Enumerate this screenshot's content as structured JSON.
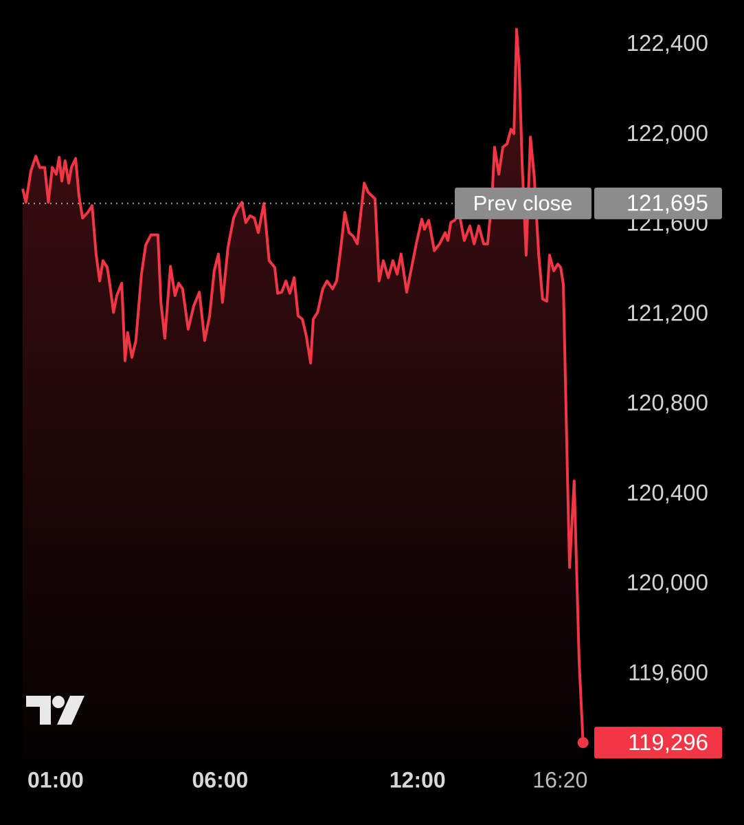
{
  "chart_data": {
    "type": "area",
    "color": "#f23645",
    "x": [
      0,
      0.1,
      0.25,
      0.4,
      0.52,
      0.67,
      0.78,
      0.9,
      1.02,
      1.11,
      1.19,
      1.29,
      1.4,
      1.48,
      1.61,
      1.71,
      1.82,
      1.98,
      2.11,
      2.23,
      2.34,
      2.44,
      2.57,
      2.65,
      2.76,
      2.86,
      3.01,
      3.11,
      3.19,
      3.32,
      3.44,
      3.61,
      3.74,
      3.9,
      4.11,
      4.2,
      4.32,
      4.49,
      4.63,
      4.74,
      4.86,
      5.03,
      5.2,
      5.37,
      5.53,
      5.68,
      5.82,
      5.95,
      6.07,
      6.24,
      6.41,
      6.53,
      6.66,
      6.78,
      6.91,
      7.04,
      7.16,
      7.33,
      7.49,
      7.66,
      7.75,
      7.87,
      8.0,
      8.12,
      8.25,
      8.37,
      8.5,
      8.62,
      8.75,
      8.83,
      8.96,
      9.12,
      9.25,
      9.42,
      9.54,
      9.67,
      9.79,
      9.92,
      10.04,
      10.17,
      10.38,
      10.5,
      10.71,
      10.83,
      10.96,
      11.11,
      11.25,
      11.38,
      11.5,
      11.67,
      11.84,
      11.96,
      12.13,
      12.21,
      12.34,
      12.51,
      12.67,
      12.84,
      12.92,
      13.01,
      13.13,
      13.26,
      13.42,
      13.59,
      13.72,
      13.86,
      14.01,
      14.13,
      14.26,
      14.34,
      14.47,
      14.59,
      14.72,
      14.84,
      14.93,
      15.01,
      15.09,
      15.18,
      15.3,
      15.43,
      15.55,
      15.68,
      15.8,
      15.93,
      16.01,
      16.14,
      16.26,
      16.35,
      16.43,
      16.56,
      16.62,
      16.76,
      16.91,
      17.03
    ],
    "values": [
      121760,
      121700,
      121840,
      121905,
      121855,
      121855,
      121700,
      121855,
      121825,
      121900,
      121795,
      121885,
      121785,
      121855,
      121895,
      121730,
      121630,
      121655,
      121685,
      121470,
      121350,
      121440,
      121410,
      121335,
      121210,
      121285,
      121340,
      120995,
      121120,
      121010,
      121085,
      121380,
      121510,
      121555,
      121555,
      121255,
      121095,
      121415,
      121285,
      121340,
      121315,
      121135,
      121240,
      121300,
      121085,
      121195,
      121395,
      121470,
      121255,
      121500,
      121630,
      121670,
      121700,
      121610,
      121640,
      121630,
      121565,
      121695,
      121440,
      121410,
      121295,
      121300,
      121350,
      121295,
      121365,
      121195,
      121180,
      121105,
      120985,
      121180,
      121210,
      121315,
      121350,
      121315,
      121350,
      121500,
      121655,
      121565,
      121550,
      121515,
      121785,
      121745,
      121715,
      121350,
      121440,
      121365,
      121440,
      121380,
      121470,
      121300,
      121425,
      121515,
      121625,
      121580,
      121620,
      121485,
      121515,
      121565,
      121530,
      121610,
      121620,
      121655,
      121530,
      121595,
      121515,
      121595,
      121515,
      121515,
      121715,
      121945,
      121825,
      121945,
      121960,
      122025,
      122005,
      122470,
      122300,
      121870,
      121465,
      121990,
      121810,
      121470,
      121270,
      121260,
      121465,
      121395,
      121425,
      121410,
      121335,
      120460,
      120075,
      120460,
      119660,
      119296
    ],
    "xlim": [
      0,
      17.7
    ],
    "xticks": [
      {
        "value": 1,
        "label": "01:00"
      },
      {
        "value": 6,
        "label": "06:00"
      },
      {
        "value": 12,
        "label": "12:00"
      },
      {
        "value": 16.333,
        "label": "16:20"
      }
    ],
    "ylim": [
      119220,
      122600
    ],
    "yticks": [
      {
        "value": 119600,
        "label": "119,600"
      },
      {
        "value": 120000,
        "label": "120,000"
      },
      {
        "value": 120400,
        "label": "120,400"
      },
      {
        "value": 120800,
        "label": "120,800"
      },
      {
        "value": 121200,
        "label": "121,200"
      },
      {
        "value": 121600,
        "label": "121,600"
      },
      {
        "value": 122000,
        "label": "122,000"
      },
      {
        "value": 122400,
        "label": "122,400"
      }
    ],
    "prev_close_title": "Prev close",
    "prev_close": {
      "value": 121695,
      "label": "121,695"
    },
    "last_price": {
      "value": 119296,
      "label": "119,296"
    },
    "grid": false
  }
}
